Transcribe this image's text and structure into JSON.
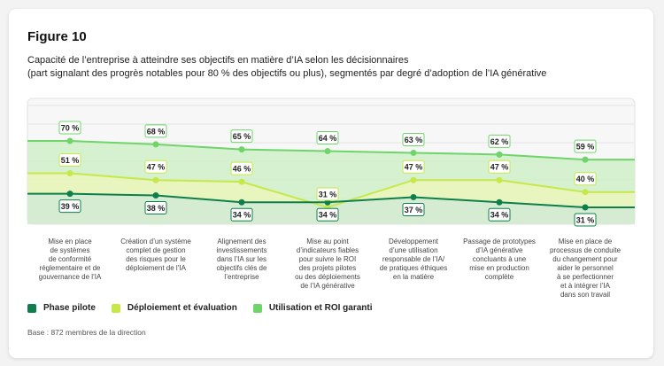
{
  "figure": {
    "title": "Figure 10",
    "subtitle_line1": "Capacité de l’entreprise à atteindre ses objectifs en matière d’IA selon les décisionnaires",
    "subtitle_line2": "(part signalant des progrès notables pour 80 % des objectifs ou plus), segmentés par degré d’adoption de l’IA générative",
    "footnote": "Base : 872 membres de la direction"
  },
  "chart_data": {
    "type": "area",
    "ylim": [
      0,
      100
    ],
    "categories": [
      [
        "Mise en place",
        "de systèmes",
        "de conformité",
        "réglementaire et de",
        "gouvernance de l’IA"
      ],
      [
        "Création d’un système",
        "complet de gestion",
        "des risques pour le",
        "déploiement de l’IA"
      ],
      [
        "Alignement des",
        "investissements",
        "dans l’IA sur les",
        "objectifs clés de",
        "l’entreprise"
      ],
      [
        "Mise au point",
        "d’indicateurs fiables",
        "pour suivre le ROI",
        "des projets pilotes",
        "ou des déploiements",
        "de l’IA générative"
      ],
      [
        "Développement",
        "d’une utilisation",
        "responsable de l’IA/",
        "de pratiques éthiques",
        "en la matière"
      ],
      [
        "Passage de prototypes",
        "d’IA générative",
        "concluants à une",
        "mise en production",
        "complète"
      ],
      [
        "Mise en place de",
        "processus de conduite",
        "du changement pour",
        "aider le personnel",
        "à se perfectionner",
        "et à intégrer l’IA",
        "dans son travail"
      ]
    ],
    "series": [
      {
        "name": "Utilisation et ROI garanti",
        "values": [
          70,
          68,
          65,
          64,
          63,
          62,
          59
        ],
        "color": "#6fd46a",
        "fill": "#c9efc3"
      },
      {
        "name": "Déploiement et évaluation",
        "values": [
          51,
          47,
          46,
          31,
          47,
          47,
          40
        ],
        "color": "#c6e84a",
        "fill": "#eef6b8"
      },
      {
        "name": "Phase pilote",
        "values": [
          39,
          38,
          34,
          34,
          37,
          34,
          31
        ],
        "color": "#0e7f4a",
        "fill": "#cfe8da"
      }
    ],
    "labels": [
      [
        "70 %",
        "68 %",
        "65 %",
        "64 %",
        "63 %",
        "62 %",
        "59 %"
      ],
      [
        "51 %",
        "47 %",
        "46 %",
        "31 %",
        "47 %",
        "47 %",
        "40 %"
      ],
      [
        "39 %",
        "38 %",
        "34 %",
        "34 %",
        "37 %",
        "34 %",
        "31 %"
      ]
    ],
    "legend_order": [
      "Phase pilote",
      "Déploiement et évaluation",
      "Utilisation et ROI garanti"
    ],
    "legend_placement": "bottom-left",
    "grid": true
  }
}
